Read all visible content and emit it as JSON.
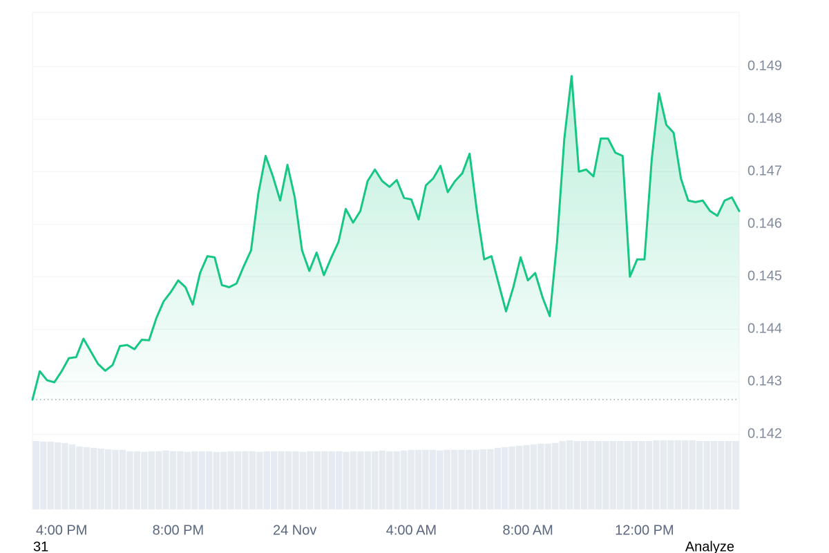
{
  "chart_data": {
    "type": "line",
    "x": [
      15,
      15.25,
      15.5,
      15.75,
      16,
      16.25,
      16.5,
      16.75,
      17,
      17.25,
      17.5,
      17.75,
      18,
      18.25,
      18.5,
      18.75,
      19,
      19.25,
      19.5,
      19.75,
      20,
      20.25,
      20.5,
      20.75,
      21,
      21.25,
      21.5,
      21.75,
      22,
      22.25,
      22.5,
      22.75,
      23,
      23.25,
      23.5,
      23.75,
      24,
      24.25,
      24.5,
      24.75,
      25,
      25.25,
      25.5,
      25.75,
      26,
      26.25,
      26.5,
      26.75,
      27,
      27.25,
      27.5,
      27.75,
      28,
      28.25,
      28.5,
      28.75,
      29,
      29.25,
      29.5,
      29.75,
      30,
      30.25,
      30.5,
      30.75,
      31,
      31.25,
      31.5,
      31.75,
      32,
      32.25,
      32.5,
      32.75,
      33,
      33.25,
      33.5,
      33.75,
      34,
      34.25,
      34.5,
      34.75,
      35,
      35.25,
      35.5,
      35.75,
      36,
      36.25,
      36.5,
      36.75,
      37,
      37.25,
      37.5,
      37.75,
      38,
      38.25,
      38.5,
      38.75,
      39,
      39.25
    ],
    "values": [
      0.14266,
      0.1432,
      0.14303,
      0.14299,
      0.1432,
      0.14345,
      0.14347,
      0.14382,
      0.14358,
      0.14334,
      0.14321,
      0.14332,
      0.14368,
      0.1437,
      0.14362,
      0.1438,
      0.14379,
      0.14421,
      0.14453,
      0.14471,
      0.14493,
      0.1448,
      0.14447,
      0.14507,
      0.14539,
      0.14537,
      0.14484,
      0.1448,
      0.14487,
      0.1452,
      0.1455,
      0.14658,
      0.1473,
      0.14691,
      0.14645,
      0.14713,
      0.14651,
      0.1455,
      0.14511,
      0.14546,
      0.14503,
      0.14536,
      0.14566,
      0.14629,
      0.14603,
      0.14625,
      0.14682,
      0.14704,
      0.14682,
      0.14671,
      0.14684,
      0.1465,
      0.14647,
      0.14609,
      0.14674,
      0.14687,
      0.14711,
      0.14661,
      0.14682,
      0.14697,
      0.14734,
      0.14625,
      0.14533,
      0.14539,
      0.14486,
      0.14434,
      0.1448,
      0.14537,
      0.14493,
      0.14507,
      0.14461,
      0.14425,
      0.14566,
      0.14763,
      0.14882,
      0.147,
      0.14704,
      0.14691,
      0.14763,
      0.14763,
      0.14736,
      0.1473,
      0.145,
      0.14533,
      0.14533,
      0.14724,
      0.14849,
      0.14789,
      0.14774,
      0.14687,
      0.14645,
      0.14642,
      0.14645,
      0.14625,
      0.14616,
      0.14645,
      0.14651,
      0.14625
    ],
    "color": "#16c784",
    "baseline": 0.14266,
    "xlim": [
      15,
      39.25
    ],
    "xticks": [
      {
        "value": 16,
        "label": "4:00 PM"
      },
      {
        "value": 20,
        "label": "8:00 PM"
      },
      {
        "value": 24,
        "label": "24 Nov"
      },
      {
        "value": 28,
        "label": "4:00 AM"
      },
      {
        "value": 32,
        "label": "8:00 AM"
      },
      {
        "value": 36,
        "label": "12:00 PM"
      }
    ],
    "ylim": [
      0.14057,
      0.15003
    ],
    "yticks": [
      0.142,
      0.143,
      0.144,
      0.145,
      0.146,
      0.147,
      0.148,
      0.149
    ],
    "grid": true,
    "volume": {
      "color": "#e6ebf1",
      "lim": [
        0,
        110
      ],
      "values": [
        100,
        99,
        99,
        98,
        97,
        95,
        92,
        91,
        90,
        89,
        88,
        87,
        87,
        85,
        85,
        84,
        85,
        85,
        86,
        85,
        85,
        84,
        85,
        85,
        85,
        84,
        84,
        85,
        85,
        85,
        85,
        84,
        85,
        85,
        85,
        85,
        85,
        84,
        85,
        85,
        85,
        85,
        85,
        84,
        85,
        85,
        85,
        85,
        86,
        85,
        85,
        86,
        87,
        87,
        87,
        87,
        86,
        87,
        87,
        87,
        87,
        87,
        88,
        88,
        90,
        91,
        92,
        93,
        94,
        95,
        96,
        96,
        97,
        100,
        101,
        100,
        100,
        100,
        100,
        100,
        100,
        100,
        100,
        100,
        100,
        100,
        101,
        101,
        101,
        101,
        101,
        101,
        100,
        100,
        100,
        100,
        100,
        100
      ]
    },
    "footer": {
      "left": "31",
      "right": "Analyze"
    }
  }
}
